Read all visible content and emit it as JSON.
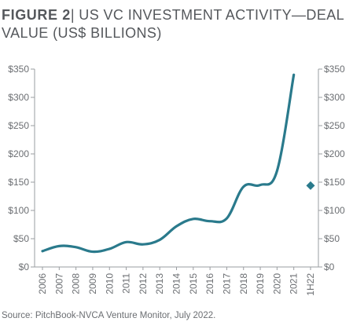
{
  "chart_data": {
    "type": "line",
    "title_prefix": "FIGURE  2",
    "title": "| US VC INVESTMENT ACTIVITY—DEAL VALUE (US$ BILLIONS)",
    "source": "Source: PitchBook-NVCA Venture Monitor, July 2022.",
    "categories": [
      "2006",
      "2007",
      "2008",
      "2009",
      "2010",
      "2011",
      "2012",
      "2013",
      "2014",
      "2015",
      "2016",
      "2017",
      "2018",
      "2019",
      "2020",
      "2021",
      "1H22"
    ],
    "series": [
      {
        "values": [
          28,
          37,
          35,
          27,
          32,
          44,
          40,
          48,
          72,
          85,
          81,
          86,
          142,
          145,
          170,
          340,
          null
        ],
        "color": "#2a7a8c"
      }
    ],
    "point_marker": {
      "category": "1H22",
      "value": 144,
      "shape": "diamond",
      "color": "#2a7a8c"
    },
    "ylim": [
      0,
      350
    ],
    "yticks": [
      "$0",
      "$50",
      "$100",
      "$150",
      "$200",
      "$250",
      "$300",
      "$350"
    ],
    "ytick_values": [
      0,
      50,
      100,
      150,
      200,
      250,
      300,
      350
    ],
    "axis_both_sides": true,
    "grid": false
  }
}
